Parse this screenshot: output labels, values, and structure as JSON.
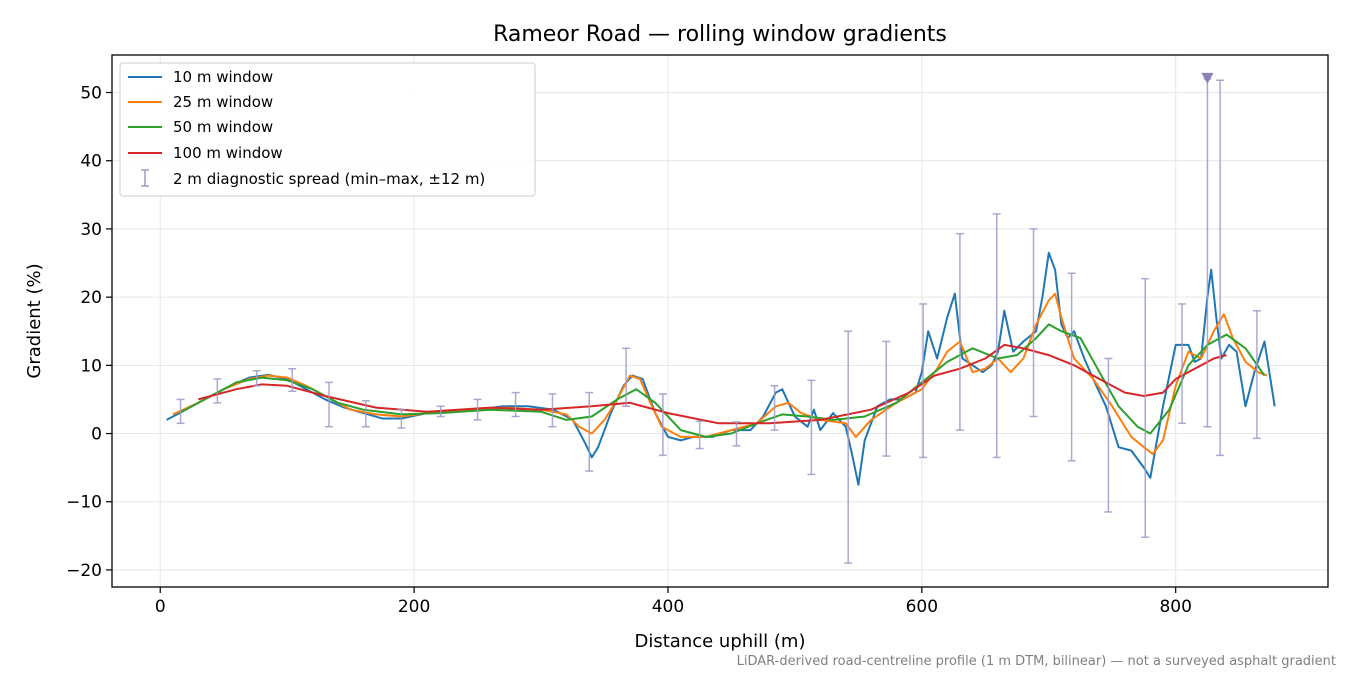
{
  "chart_data": {
    "type": "line",
    "title": "Rameor Road — rolling window gradients",
    "xlabel": "Distance uphill (m)",
    "ylabel": "Gradient (%)",
    "footnote": "LiDAR-derived road-centreline profile (1 m DTM, bilinear) — not a surveyed asphalt gradient",
    "xlim": [
      -38,
      920
    ],
    "ylim": [
      -22.5,
      55.5
    ],
    "x_ticks": [
      0,
      200,
      400,
      600,
      800
    ],
    "x_tick_labels": [
      "0",
      "200",
      "400",
      "600",
      "800"
    ],
    "y_ticks": [
      -20,
      -10,
      0,
      10,
      20,
      30,
      40,
      50
    ],
    "y_tick_labels": [
      "−20",
      "−10",
      "0",
      "10",
      "20",
      "30",
      "40",
      "50"
    ],
    "grid": true,
    "legend_position": "top-left",
    "series": [
      {
        "name": "10 m window",
        "color": "#1f77b4",
        "x": [
          5,
          15,
          30,
          50,
          70,
          85,
          100,
          115,
          130,
          145,
          160,
          175,
          190,
          210,
          230,
          250,
          270,
          290,
          310,
          325,
          335,
          340,
          345,
          355,
          365,
          372,
          380,
          390,
          400,
          410,
          420,
          435,
          450,
          465,
          475,
          485,
          490,
          500,
          510,
          515,
          520,
          530,
          540,
          545,
          550,
          555,
          565,
          575,
          585,
          595,
          600,
          605,
          612,
          620,
          626,
          632,
          640,
          648,
          655,
          660,
          665,
          672,
          680,
          690,
          695,
          700,
          705,
          710,
          715,
          720,
          728,
          735,
          745,
          755,
          765,
          775,
          780,
          790,
          800,
          810,
          815,
          820,
          825,
          828,
          832,
          836,
          842,
          848,
          855,
          862,
          870,
          878
        ],
        "y": [
          2.0,
          3.0,
          4.5,
          6.5,
          8.2,
          8.6,
          8.0,
          6.5,
          5.0,
          3.8,
          3.0,
          2.2,
          2.2,
          3.0,
          3.2,
          3.5,
          4.0,
          4.0,
          3.5,
          2.0,
          -1.5,
          -3.5,
          -2.0,
          3.0,
          7.0,
          8.5,
          8.0,
          3.0,
          -0.5,
          -1.0,
          -0.5,
          -0.5,
          0.5,
          0.5,
          2.5,
          6.0,
          6.5,
          2.5,
          1.0,
          3.5,
          0.5,
          3.0,
          1.0,
          -3.0,
          -7.5,
          -1.0,
          4.0,
          5.0,
          5.0,
          6.0,
          9.0,
          15.0,
          11.0,
          17.0,
          20.5,
          11.0,
          10.0,
          9.0,
          10.0,
          12.0,
          18.0,
          12.0,
          13.5,
          15.0,
          20.0,
          26.5,
          24.0,
          16.0,
          14.0,
          15.0,
          11.0,
          8.0,
          4.0,
          -2.0,
          -2.5,
          -5.0,
          -6.5,
          4.0,
          13.0,
          13.0,
          10.5,
          11.0,
          20.0,
          24.0,
          17.0,
          11.0,
          13.0,
          12.0,
          4.0,
          9.0,
          13.5,
          4.0
        ]
      },
      {
        "name": "25 m window",
        "color": "#ff7f0e",
        "x": [
          10,
          30,
          50,
          70,
          85,
          100,
          115,
          130,
          150,
          170,
          190,
          210,
          240,
          270,
          300,
          320,
          330,
          340,
          350,
          360,
          370,
          378,
          385,
          395,
          410,
          430,
          450,
          470,
          485,
          495,
          505,
          520,
          540,
          548,
          560,
          580,
          600,
          612,
          620,
          630,
          640,
          650,
          660,
          670,
          680,
          690,
          700,
          705,
          710,
          720,
          735,
          750,
          765,
          775,
          782,
          790,
          800,
          810,
          820,
          830,
          838,
          845,
          855,
          865,
          872
        ],
        "y": [
          2.8,
          4.5,
          6.5,
          8.0,
          8.5,
          8.2,
          7.0,
          5.5,
          3.5,
          2.8,
          2.5,
          3.0,
          3.3,
          3.8,
          3.5,
          2.8,
          1.0,
          0.0,
          2.0,
          5.0,
          8.5,
          8.0,
          5.0,
          1.0,
          -0.5,
          -0.5,
          0.5,
          1.5,
          4.0,
          4.5,
          3.0,
          2.0,
          1.5,
          -0.5,
          2.0,
          4.5,
          6.5,
          9.5,
          12.0,
          13.5,
          9.0,
          9.5,
          11.0,
          9.0,
          11.0,
          16.0,
          19.5,
          20.5,
          17.0,
          11.0,
          8.0,
          4.0,
          -0.5,
          -2.0,
          -3.0,
          -1.0,
          7.0,
          12.0,
          11.0,
          15.0,
          17.5,
          14.0,
          10.5,
          9.0,
          8.5
        ]
      },
      {
        "name": "50 m window",
        "color": "#2ca02c",
        "x": [
          15,
          40,
          60,
          80,
          100,
          120,
          140,
          160,
          190,
          220,
          260,
          300,
          320,
          340,
          360,
          375,
          390,
          410,
          430,
          450,
          470,
          490,
          510,
          530,
          555,
          580,
          600,
          620,
          640,
          660,
          675,
          690,
          700,
          710,
          725,
          740,
          755,
          770,
          780,
          795,
          810,
          825,
          840,
          855,
          870
        ],
        "y": [
          3.0,
          5.5,
          7.5,
          8.2,
          7.8,
          6.5,
          4.5,
          3.5,
          2.8,
          3.0,
          3.5,
          3.2,
          2.0,
          2.5,
          5.0,
          6.5,
          4.5,
          0.5,
          -0.5,
          0.0,
          1.5,
          2.8,
          2.5,
          2.0,
          2.5,
          4.5,
          7.5,
          10.5,
          12.5,
          11.0,
          11.5,
          14.0,
          16.0,
          15.0,
          14.0,
          9.0,
          4.0,
          1.0,
          0.0,
          3.5,
          10.0,
          13.0,
          14.5,
          12.5,
          8.5
        ]
      },
      {
        "name": "100 m window",
        "color": "#d62728",
        "x": [
          30,
          60,
          80,
          100,
          130,
          170,
          210,
          260,
          300,
          340,
          370,
          400,
          440,
          480,
          520,
          560,
          590,
          610,
          630,
          650,
          665,
          680,
          700,
          720,
          740,
          760,
          775,
          790,
          800,
          815,
          830,
          840
        ],
        "y": [
          5.0,
          6.5,
          7.2,
          7.0,
          5.5,
          3.8,
          3.2,
          3.8,
          3.5,
          4.0,
          4.5,
          3.0,
          1.5,
          1.5,
          2.0,
          3.5,
          6.0,
          8.5,
          9.5,
          11.0,
          13.0,
          12.5,
          11.5,
          10.0,
          8.0,
          6.0,
          5.5,
          6.0,
          8.0,
          9.5,
          11.0,
          11.5
        ]
      }
    ],
    "errorbars": {
      "name": "2 m diagnostic spread (min–max, ±12 m)",
      "color": "#9e9ac8",
      "points": [
        {
          "x": 16,
          "low": 1.5,
          "high": 5.0
        },
        {
          "x": 45,
          "low": 4.5,
          "high": 8.0
        },
        {
          "x": 76,
          "low": 7.0,
          "high": 9.2
        },
        {
          "x": 104,
          "low": 6.2,
          "high": 9.5
        },
        {
          "x": 133,
          "low": 1.0,
          "high": 7.5
        },
        {
          "x": 162,
          "low": 1.0,
          "high": 4.8
        },
        {
          "x": 190,
          "low": 0.8,
          "high": 3.5
        },
        {
          "x": 221,
          "low": 2.5,
          "high": 4.0
        },
        {
          "x": 250,
          "low": 2.0,
          "high": 5.0
        },
        {
          "x": 280,
          "low": 2.5,
          "high": 6.0
        },
        {
          "x": 309,
          "low": 1.0,
          "high": 5.8
        },
        {
          "x": 338,
          "low": -5.5,
          "high": 6.0
        },
        {
          "x": 367,
          "low": 4.0,
          "high": 12.5
        },
        {
          "x": 396,
          "low": -3.2,
          "high": 5.8
        },
        {
          "x": 425,
          "low": -2.2,
          "high": 1.8
        },
        {
          "x": 454,
          "low": -1.8,
          "high": 1.7
        },
        {
          "x": 484,
          "low": 0.5,
          "high": 7.0
        },
        {
          "x": 513,
          "low": -6.0,
          "high": 7.8
        },
        {
          "x": 542,
          "low": -19.0,
          "high": 15.0
        },
        {
          "x": 572,
          "low": -3.3,
          "high": 13.5
        },
        {
          "x": 601,
          "low": -3.5,
          "high": 19.0
        },
        {
          "x": 630,
          "low": 0.5,
          "high": 29.3
        },
        {
          "x": 659,
          "low": -3.5,
          "high": 32.2
        },
        {
          "x": 688,
          "low": 2.5,
          "high": 30.0
        },
        {
          "x": 718,
          "low": -4.0,
          "high": 23.5
        },
        {
          "x": 747,
          "low": -11.5,
          "high": 11.0
        },
        {
          "x": 776,
          "low": -15.2,
          "high": 22.7
        },
        {
          "x": 805,
          "low": 1.5,
          "high": 19.0
        },
        {
          "x": 825,
          "low": 1.0,
          "high": 52.0
        },
        {
          "x": 835,
          "low": -3.2,
          "high": 51.8
        },
        {
          "x": 864,
          "low": -0.7,
          "high": 18.0
        }
      ],
      "clipped_marker": {
        "x": 825,
        "y": 52.0
      }
    }
  }
}
